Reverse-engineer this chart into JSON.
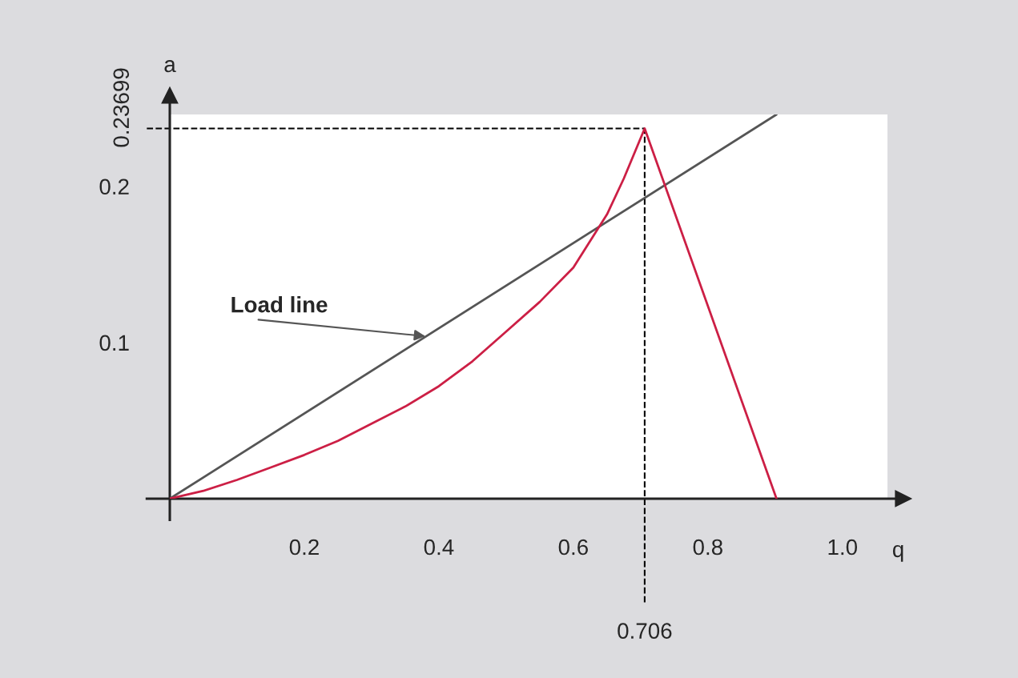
{
  "chart_data": {
    "type": "line",
    "xlabel": "q",
    "ylabel": "a",
    "xlim": [
      0,
      1.067
    ],
    "ylim": [
      0,
      0.246
    ],
    "xticks": [
      0.2,
      0.4,
      0.6,
      0.8,
      {
        "value": 1.0,
        "label": "1.0"
      }
    ],
    "yticks": [
      0.1,
      0.2
    ],
    "grid": false,
    "legend": false,
    "marker": "none",
    "line_style": "solid",
    "series": [
      {
        "color": "#555555",
        "x": [
          0,
          0.902
        ],
        "values": [
          0,
          0.246
        ]
      },
      {
        "color": "#cc1f45",
        "x": [
          0,
          0.05,
          0.1,
          0.15,
          0.2,
          0.25,
          0.3,
          0.35,
          0.4,
          0.45,
          0.5,
          0.55,
          0.6,
          0.65,
          0.675,
          0.706,
          0.902
        ],
        "values": [
          0,
          0.005,
          0.012,
          0.02,
          0.028,
          0.037,
          0.048,
          0.059,
          0.072,
          0.088,
          0.107,
          0.126,
          0.148,
          0.182,
          0.205,
          0.237,
          0
        ]
      }
    ],
    "ref_lines": [
      {
        "axis": "x",
        "value": 0.706,
        "label": "0.706",
        "color": "#000000",
        "line_style": "dashed"
      },
      {
        "axis": "y",
        "value": 0.23699,
        "label": "0.23699",
        "color": "#000000",
        "line_style": "dashed"
      }
    ],
    "annotations": [
      {
        "text": "Load line",
        "x": 0.38,
        "y": 0.104
      }
    ]
  }
}
